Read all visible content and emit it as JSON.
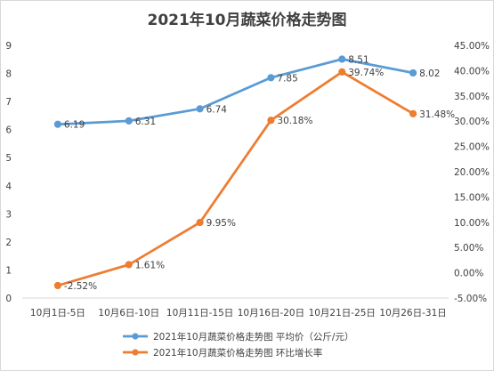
{
  "chart_data": {
    "type": "line",
    "title": "2021年10月蔬菜价格走势图",
    "categories": [
      "10月1日-5日",
      "10月6日-10日",
      "10月11日-15日",
      "10月16日-20日",
      "10月21日-25日",
      "10月26日-31日"
    ],
    "series": [
      {
        "name": "2021年10月蔬菜价格走势图 平均价（公斤/元）",
        "axis": "left",
        "color": "#5b9bd5",
        "values": [
          6.19,
          6.31,
          6.74,
          7.85,
          8.51,
          8.02
        ],
        "labels": [
          "6.19",
          "6.31",
          "6.74",
          "7.85",
          "8.51",
          "8.02"
        ]
      },
      {
        "name": "2021年10月蔬菜价格走势图 环比增长率",
        "axis": "right",
        "color": "#ed7d31",
        "values": [
          -2.52,
          1.61,
          9.95,
          30.18,
          39.74,
          31.48
        ],
        "labels": [
          "-2.52%",
          "1.61%",
          "9.95%",
          "30.18%",
          "39.74%",
          "31.48%"
        ]
      }
    ],
    "y_left": {
      "min": 0,
      "max": 9,
      "step": 1,
      "ticks": [
        "0",
        "1",
        "2",
        "3",
        "4",
        "5",
        "6",
        "7",
        "8",
        "9"
      ]
    },
    "y_right": {
      "min": -5,
      "max": 45,
      "step": 5,
      "ticks": [
        "-5.00%",
        "0.00%",
        "5.00%",
        "10.00%",
        "15.00%",
        "20.00%",
        "25.00%",
        "30.00%",
        "35.00%",
        "40.00%",
        "45.00%"
      ]
    },
    "grid": false,
    "legend": "bottom"
  }
}
